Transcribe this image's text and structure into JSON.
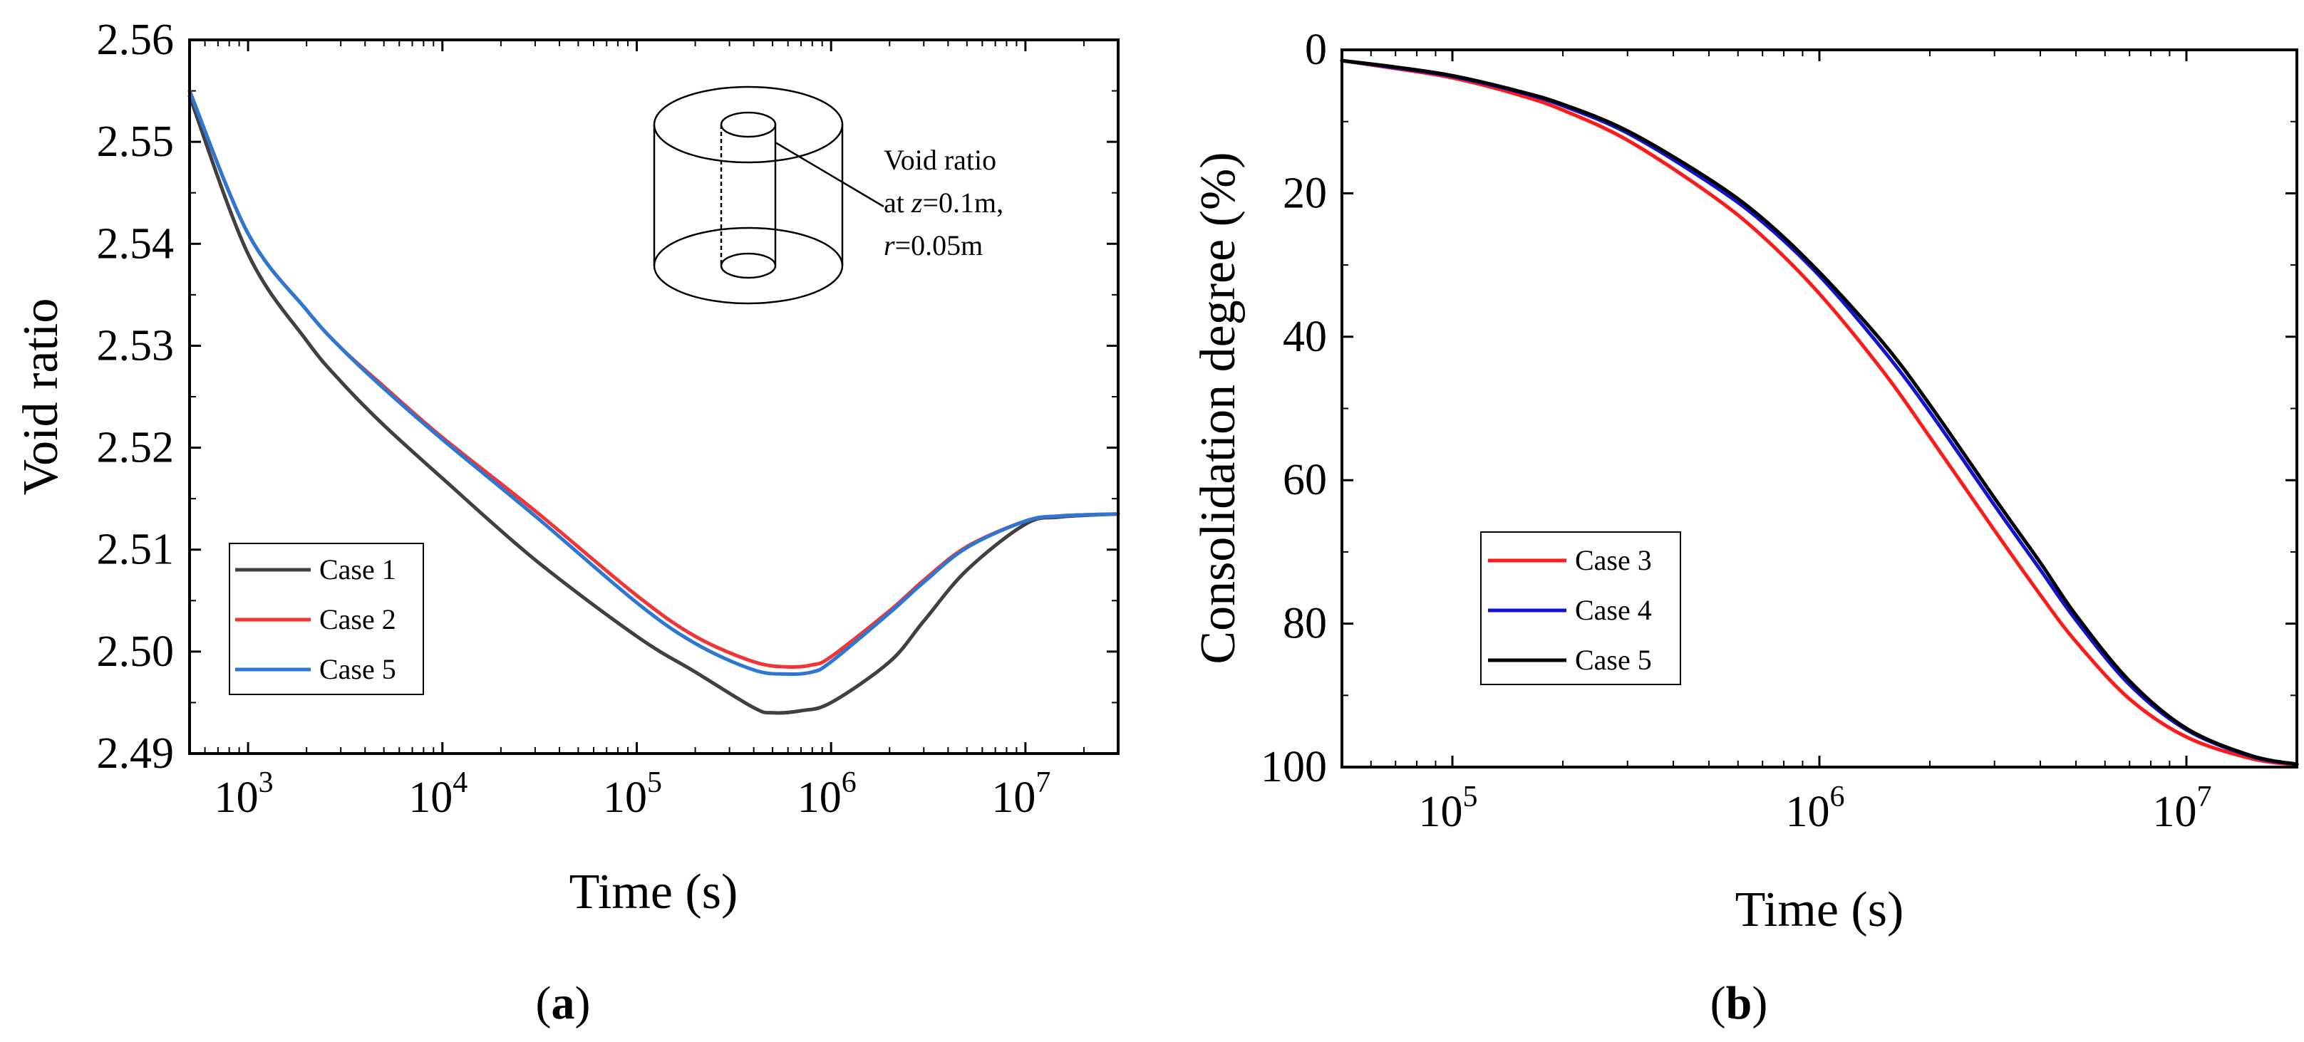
{
  "colors": {
    "case1": "#404040",
    "case2": "#ef3535",
    "case3": "#ff1a1a",
    "case4": "#1212d4",
    "case5_a": "#2c76d4",
    "case5_b": "#000000",
    "axis": "#000000"
  },
  "panel_labels": [
    {
      "text": "a"
    },
    {
      "text": "b"
    }
  ],
  "chart_data": [
    {
      "type": "line",
      "panel": "a",
      "xlabel": "Time (s)",
      "ylabel": "Void ratio",
      "x_scale": "log",
      "xlim": [
        500,
        30000000
      ],
      "ylim": [
        2.49,
        2.56
      ],
      "x_ticks": [
        {
          "value": 1000,
          "base": "10",
          "exp": "3"
        },
        {
          "value": 10000,
          "base": "10",
          "exp": "4"
        },
        {
          "value": 100000,
          "base": "10",
          "exp": "5"
        },
        {
          "value": 1000000,
          "base": "10",
          "exp": "6"
        },
        {
          "value": 10000000,
          "base": "10",
          "exp": "7"
        }
      ],
      "y_ticks": [
        {
          "value": 2.49,
          "label": "2.49"
        },
        {
          "value": 2.5,
          "label": "2.50"
        },
        {
          "value": 2.51,
          "label": "2.51"
        },
        {
          "value": 2.52,
          "label": "2.52"
        },
        {
          "value": 2.53,
          "label": "2.53"
        },
        {
          "value": 2.54,
          "label": "2.54"
        },
        {
          "value": 2.55,
          "label": "2.55"
        },
        {
          "value": 2.56,
          "label": "2.56"
        }
      ],
      "legend_position": "lower-left",
      "annotation": {
        "line1": "Void ratio",
        "line2_prefix": "at ",
        "line2_var": "z",
        "line2_rest": "=0.1m,",
        "line3_var": "r",
        "line3_rest": "=0.05m"
      },
      "series": [
        {
          "name": "Case 1",
          "color_key": "case1",
          "x": [
            500,
            1000,
            2000,
            3000,
            5000,
            10000,
            30000,
            100000,
            200000,
            400000,
            500000,
            700000,
            1000000,
            2000000,
            3000000,
            5000000,
            10000000,
            15000000,
            30000000
          ],
          "y": [
            2.5545,
            2.539,
            2.5305,
            2.5265,
            2.5222,
            2.517,
            2.509,
            2.5015,
            2.498,
            2.4945,
            2.494,
            2.4942,
            2.495,
            2.499,
            2.503,
            2.508,
            2.5125,
            2.5132,
            2.5135
          ]
        },
        {
          "name": "Case 2",
          "color_key": "case2",
          "x": [
            500,
            1000,
            2000,
            3000,
            5000,
            10000,
            30000,
            100000,
            200000,
            400000,
            600000,
            800000,
            1000000,
            2000000,
            3000000,
            5000000,
            10000000,
            15000000,
            30000000
          ],
          "y": [
            2.555,
            2.541,
            2.5335,
            2.5298,
            2.526,
            2.521,
            2.5138,
            2.5055,
            2.5015,
            2.499,
            2.4985,
            2.4987,
            2.4995,
            2.504,
            2.507,
            2.5103,
            2.5128,
            2.5133,
            2.5135
          ]
        },
        {
          "name": "Case 5",
          "color_key": "case5_a",
          "x": [
            500,
            1000,
            2000,
            3000,
            5000,
            10000,
            30000,
            100000,
            200000,
            400000,
            600000,
            800000,
            1000000,
            2000000,
            3000000,
            5000000,
            10000000,
            15000000,
            30000000
          ],
          "y": [
            2.555,
            2.541,
            2.5335,
            2.5298,
            2.5258,
            2.5208,
            2.5133,
            2.5048,
            2.5008,
            2.4982,
            2.4978,
            2.498,
            2.499,
            2.5038,
            2.5068,
            2.5102,
            2.5128,
            2.5133,
            2.5135
          ]
        }
      ]
    },
    {
      "type": "line",
      "panel": "b",
      "xlabel": "Time (s)",
      "ylabel": "Consolidation degree (%)",
      "x_scale": "log",
      "xlim": [
        50000,
        20000000
      ],
      "ylim": [
        0,
        100
      ],
      "y_inverted": true,
      "x_ticks": [
        {
          "value": 100000,
          "base": "10",
          "exp": "5"
        },
        {
          "value": 1000000,
          "base": "10",
          "exp": "6"
        },
        {
          "value": 10000000,
          "base": "10",
          "exp": "7"
        }
      ],
      "y_ticks": [
        {
          "value": 0,
          "label": "0"
        },
        {
          "value": 20,
          "label": "20"
        },
        {
          "value": 40,
          "label": "40"
        },
        {
          "value": 60,
          "label": "60"
        },
        {
          "value": 80,
          "label": "80"
        },
        {
          "value": 100,
          "label": "100"
        }
      ],
      "legend_position": "lower-left",
      "series": [
        {
          "name": "Case 3",
          "color_key": "case3",
          "x": [
            50000,
            70000,
            100000,
            150000,
            200000,
            300000,
            500000,
            700000,
            1000000,
            1500000,
            2000000,
            3000000,
            4000000,
            5000000,
            7000000,
            10000000,
            15000000,
            20000000
          ],
          "y": [
            1.5,
            2.6,
            3.9,
            6.2,
            8.4,
            12.6,
            20.0,
            26.0,
            34.0,
            45.0,
            54.0,
            67.0,
            76.0,
            82.5,
            90.5,
            95.8,
            98.8,
            99.7
          ]
        },
        {
          "name": "Case 4",
          "color_key": "case4",
          "x": [
            50000,
            70000,
            100000,
            150000,
            200000,
            300000,
            500000,
            700000,
            1000000,
            1500000,
            2000000,
            3000000,
            4000000,
            5000000,
            7000000,
            10000000,
            15000000,
            20000000
          ],
          "y": [
            1.5,
            2.5,
            3.7,
            5.8,
            7.8,
            11.6,
            18.5,
            24.0,
            31.5,
            42.0,
            50.5,
            63.5,
            72.5,
            79.5,
            88.5,
            94.8,
            98.5,
            99.6
          ]
        },
        {
          "name": "Case 5",
          "color_key": "case5_b",
          "x": [
            50000,
            70000,
            100000,
            150000,
            200000,
            300000,
            500000,
            700000,
            1000000,
            1500000,
            2000000,
            3000000,
            4000000,
            5000000,
            7000000,
            10000000,
            15000000,
            20000000
          ],
          "y": [
            1.5,
            2.4,
            3.6,
            5.7,
            7.6,
            11.3,
            18.0,
            23.5,
            31.0,
            41.0,
            49.5,
            62.5,
            71.5,
            78.8,
            88.0,
            94.6,
            98.4,
            99.6
          ]
        }
      ]
    }
  ]
}
